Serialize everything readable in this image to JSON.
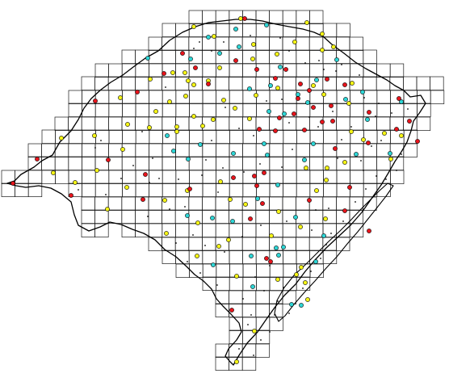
{
  "map": {
    "colors": {
      "grid": "#1a1a1a",
      "border": "#000000",
      "background": "#ffffff",
      "marker_red": "#e8141c",
      "marker_yellow": "#f5f516",
      "marker_cyan": "#2ed6d6",
      "small_dot": "#000000"
    },
    "marker_categories": [
      "red",
      "yellow",
      "cyan",
      "small-dot"
    ]
  }
}
